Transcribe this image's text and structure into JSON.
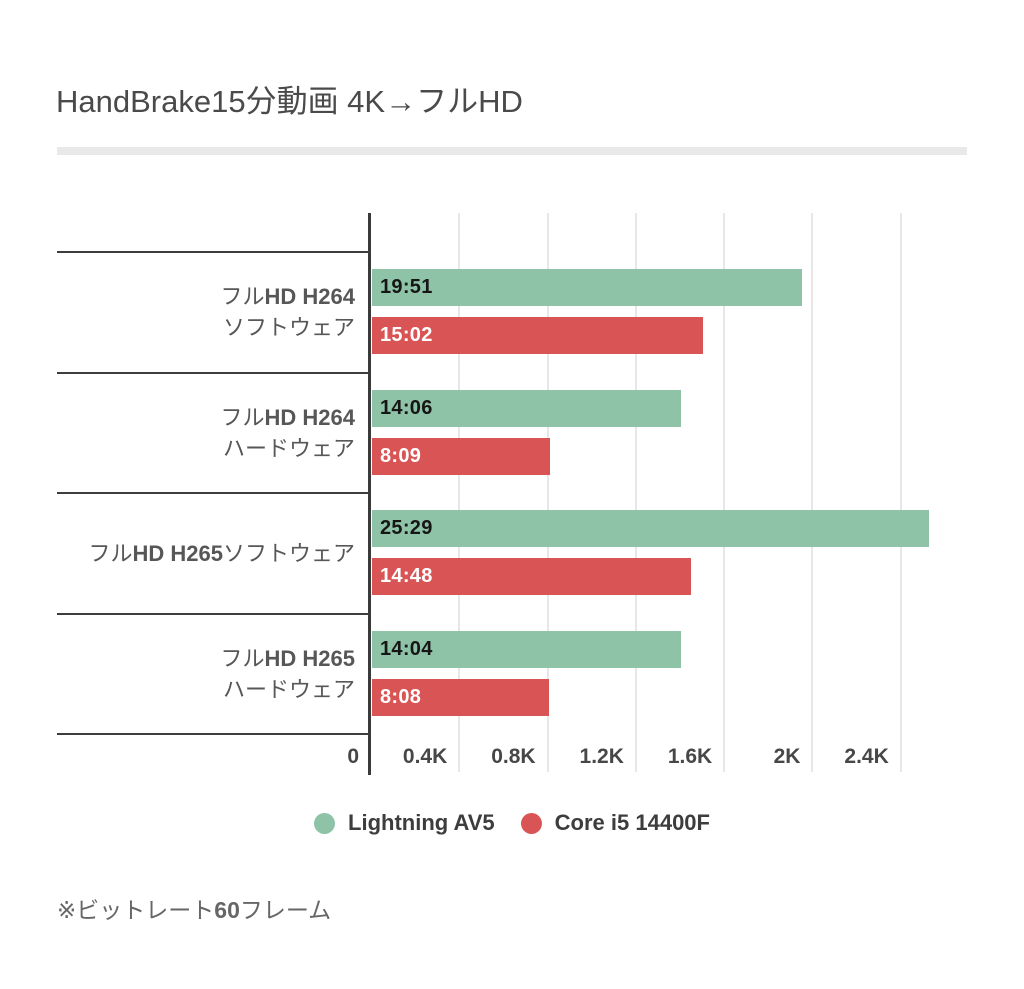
{
  "title": "HandBrake15分動画 4K→フルHD",
  "footnote": "※ビットレート60フレーム",
  "colors": {
    "series_green": "#8ec3a8",
    "series_red": "#d95555",
    "axis_line": "#3a3a3a",
    "row_separator": "#3d3d3d",
    "gridline": "#e7e7e7",
    "title_divider": "#e9e9e9"
  },
  "chart_data": {
    "type": "bar",
    "orientation": "horizontal",
    "title": "HandBrake15分動画 4K→フルHD",
    "categories": [
      "フルHD H264 ソフトウェア",
      "フルHD H264 ハードウェア",
      "フルHD H265ソフトウェア",
      "フルHD H265 ハードウェア"
    ],
    "category_lines": [
      [
        "フルHD H264",
        "ソフトウェア"
      ],
      [
        "フルHD H264",
        "ハードウェア"
      ],
      [
        "フルHD H265ソフトウェア"
      ],
      [
        "フルHD H265",
        "ハードウェア"
      ]
    ],
    "series": [
      {
        "name": "Lightning AV5",
        "color": "#8ec3a8",
        "label_color": "#161616",
        "values": [
          1951,
          1406,
          2529,
          1404
        ],
        "labels": [
          "19:51",
          "14:06",
          "25:29",
          "14:04"
        ]
      },
      {
        "name": "Core i5 14400F",
        "color": "#d95555",
        "label_color": "#ffffff",
        "values": [
          1502,
          809,
          1448,
          808
        ],
        "labels": [
          "15:02",
          "8:09",
          "14:48",
          "8:08"
        ]
      }
    ],
    "xlim": [
      0,
      2700
    ],
    "x_ticks": [
      {
        "value": 0,
        "label": "0"
      },
      {
        "value": 400,
        "label": "0.4K"
      },
      {
        "value": 800,
        "label": "0.8K"
      },
      {
        "value": 1200,
        "label": "1.2K"
      },
      {
        "value": 1600,
        "label": "1.6K"
      },
      {
        "value": 2000,
        "label": "2K"
      },
      {
        "value": 2400,
        "label": "2.4K"
      }
    ],
    "grid": true,
    "legend_position": "bottom",
    "value_label_position": "inside-start"
  }
}
